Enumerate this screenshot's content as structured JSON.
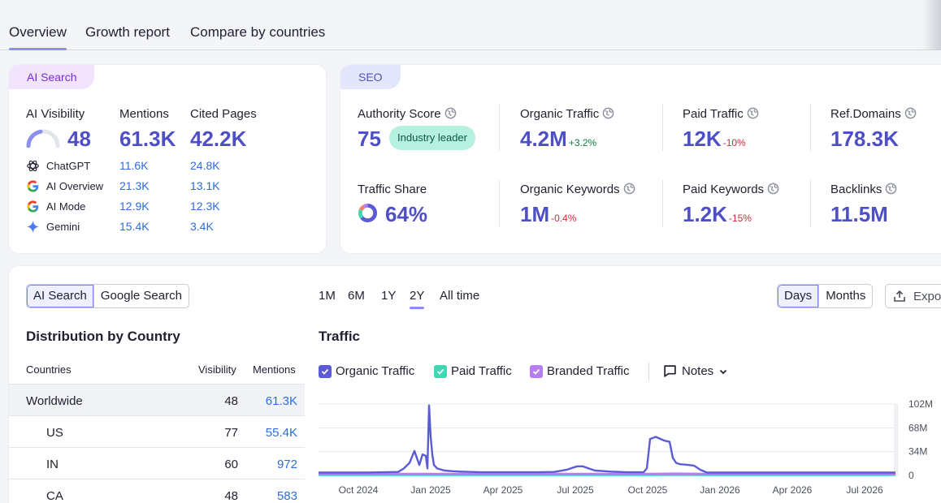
{
  "tabs": [
    "Overview",
    "Growth report",
    "Compare by countries"
  ],
  "ai_card": {
    "label": "AI Search",
    "cols": [
      "AI Visibility",
      "Mentions",
      "Cited Pages"
    ],
    "visibility": "48",
    "mentions": "61.3K",
    "cited": "42.2K",
    "rows": [
      {
        "name": "ChatGPT",
        "icon": "chatgpt-icon",
        "mentions": "11.6K",
        "cited": "24.8K"
      },
      {
        "name": "AI Overview",
        "icon": "google-icon",
        "mentions": "21.3K",
        "cited": "13.1K"
      },
      {
        "name": "AI Mode",
        "icon": "google-icon",
        "mentions": "12.9K",
        "cited": "12.3K"
      },
      {
        "name": "Gemini",
        "icon": "gemini-icon",
        "mentions": "15.4K",
        "cited": "3.4K"
      }
    ]
  },
  "seo_card": {
    "label": "SEO",
    "authority": {
      "label": "Authority Score",
      "value": "75",
      "badge": "Industry leader"
    },
    "organic_traffic": {
      "label": "Organic Traffic",
      "value": "4.2M",
      "delta": "+3.2%"
    },
    "paid_traffic": {
      "label": "Paid Traffic",
      "value": "12K",
      "delta": "-10%"
    },
    "ref_domains": {
      "label": "Ref.Domains",
      "value": "178.3K"
    },
    "traffic_share": {
      "label": "Traffic Share",
      "value": "64%"
    },
    "organic_keywords": {
      "label": "Organic Keywords",
      "value": "1M",
      "delta": "-0.4%"
    },
    "paid_keywords": {
      "label": "Paid Keywords",
      "value": "1.2K",
      "delta": "-15%"
    },
    "backlinks": {
      "label": "Backlinks",
      "value": "11.5M"
    }
  },
  "controls": {
    "source_options": [
      "AI Search",
      "Google Search"
    ],
    "periods": [
      "1M",
      "6M",
      "1Y",
      "2Y",
      "All time"
    ],
    "active_period": "2Y",
    "granularity": [
      "Days",
      "Months"
    ],
    "export": "Expo"
  },
  "distribution": {
    "title": "Distribution by Country",
    "headers": [
      "Countries",
      "Visibility",
      "Mentions"
    ],
    "rows": [
      {
        "name": "Worldwide",
        "visibility": "48",
        "mentions": "61.3K"
      },
      {
        "name": "US",
        "visibility": "77",
        "mentions": "55.4K"
      },
      {
        "name": "IN",
        "visibility": "60",
        "mentions": "972"
      },
      {
        "name": "CA",
        "visibility": "48",
        "mentions": "583"
      }
    ]
  },
  "traffic": {
    "title": "Traffic",
    "legend": [
      {
        "name": "Organic Traffic",
        "color": "#5b5bd6"
      },
      {
        "name": "Paid Traffic",
        "color": "#3ed8b4"
      },
      {
        "name": "Branded Traffic",
        "color": "#b77ef0"
      }
    ],
    "notes": "Notes"
  },
  "chart_data": {
    "type": "line",
    "x_ticks": [
      "Oct 2024",
      "Jan 2025",
      "Apr 2025",
      "Jul 2025",
      "Oct 2025",
      "Jan 2026",
      "Apr 2026",
      "Jul 2026"
    ],
    "y_ticks": [
      "102M",
      "68M",
      "34M",
      "0"
    ],
    "ylim": [
      0,
      102
    ],
    "y_unit": "M",
    "series": [
      {
        "name": "Organic Traffic",
        "points": [
          [
            0,
            4
          ],
          [
            20,
            4
          ],
          [
            40,
            4
          ],
          [
            60,
            4.2
          ],
          [
            80,
            4.5
          ],
          [
            98,
            5
          ],
          [
            105,
            10
          ],
          [
            112,
            18
          ],
          [
            118,
            35
          ],
          [
            124,
            15
          ],
          [
            128,
            30
          ],
          [
            132,
            28
          ],
          [
            134,
            10
          ],
          [
            136,
            100
          ],
          [
            138,
            55
          ],
          [
            140,
            30
          ],
          [
            142,
            15
          ],
          [
            146,
            10
          ],
          [
            155,
            7
          ],
          [
            165,
            6
          ],
          [
            175,
            5.5
          ],
          [
            200,
            4.5
          ],
          [
            240,
            4.5
          ],
          [
            270,
            4.5
          ],
          [
            290,
            5
          ],
          [
            305,
            8
          ],
          [
            318,
            13
          ],
          [
            325,
            13
          ],
          [
            340,
            7
          ],
          [
            360,
            5.5
          ],
          [
            380,
            4.5
          ],
          [
            400,
            4.5
          ],
          [
            404,
            10
          ],
          [
            408,
            52
          ],
          [
            415,
            55
          ],
          [
            425,
            50
          ],
          [
            432,
            48
          ],
          [
            436,
            25
          ],
          [
            440,
            18
          ],
          [
            445,
            16
          ],
          [
            455,
            15
          ],
          [
            462,
            14
          ],
          [
            470,
            8
          ],
          [
            478,
            4
          ],
          [
            500,
            4
          ],
          [
            550,
            4
          ],
          [
            600,
            4
          ],
          [
            650,
            4
          ],
          [
            710,
            4
          ]
        ]
      },
      {
        "name": "Paid Traffic",
        "points": [
          [
            0,
            0.8
          ],
          [
            710,
            0.8
          ]
        ]
      },
      {
        "name": "Branded Traffic",
        "points": [
          [
            0,
            2
          ],
          [
            408,
            2
          ],
          [
            440,
            2.4
          ],
          [
            478,
            2
          ],
          [
            710,
            2
          ]
        ]
      }
    ]
  }
}
